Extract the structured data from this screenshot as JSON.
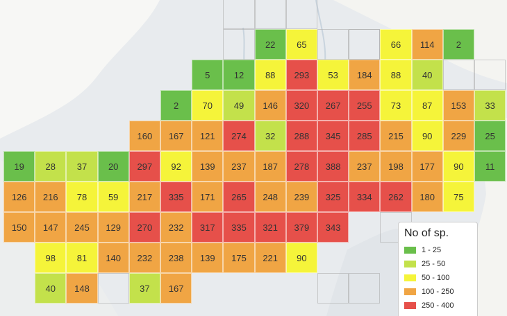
{
  "legend": {
    "title": "No of sp.",
    "bins": [
      {
        "label": "1 - 25",
        "color": "#6abf4b"
      },
      {
        "label": "25 - 50",
        "color": "#c3e14b"
      },
      {
        "label": "50 - 100",
        "color": "#f5f43a"
      },
      {
        "label": "100 - 250",
        "color": "#f0a544"
      },
      {
        "label": "250 - 400",
        "color": "#e6504a"
      }
    ]
  },
  "grid": {
    "rows": [
      {
        "row": 0,
        "start_col": 8,
        "values": [
          22,
          65,
          null,
          null,
          66,
          114,
          2
        ]
      },
      {
        "row": 1,
        "start_col": 6,
        "values": [
          5,
          12,
          88,
          293,
          53,
          184,
          88,
          40
        ]
      },
      {
        "row": 2,
        "start_col": 5,
        "values": [
          2,
          70,
          49,
          146,
          320,
          267,
          255,
          73,
          87,
          153,
          33
        ]
      },
      {
        "row": 3,
        "start_col": 4,
        "values": [
          160,
          167,
          121,
          274,
          32,
          288,
          345,
          285,
          215,
          90,
          229,
          25
        ]
      },
      {
        "row": 4,
        "start_col": 0,
        "values": [
          19,
          28,
          37,
          20,
          297,
          92,
          139,
          237,
          187,
          278,
          388,
          237,
          198,
          177,
          90,
          11
        ]
      },
      {
        "row": 5,
        "start_col": 0,
        "values": [
          126,
          216,
          78,
          59,
          217,
          335,
          171,
          265,
          248,
          239,
          325,
          334,
          262,
          180,
          75
        ]
      },
      {
        "row": 6,
        "start_col": 0,
        "values": [
          150,
          147,
          245,
          129,
          270,
          232,
          317,
          335,
          321,
          379,
          343
        ]
      },
      {
        "row": 7,
        "start_col": 1,
        "values": [
          98,
          81,
          140,
          232,
          238,
          139,
          175,
          221,
          90
        ]
      },
      {
        "row": 8,
        "start_col": 1,
        "values": [
          40,
          148,
          null,
          37,
          167
        ]
      }
    ]
  }
}
